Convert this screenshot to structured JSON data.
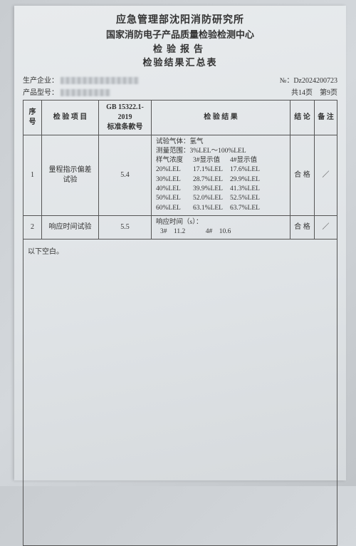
{
  "header": {
    "line1": "应急管理部沈阳消防研究所",
    "line2": "国家消防电子产品质量检验检测中心",
    "line3": "检验报告",
    "line4": "检验结果汇总表"
  },
  "meta": {
    "manufacturer_label": "生产企业：",
    "model_label": "产品型号：",
    "doc_no_label": "№：",
    "doc_no": "Dz2024200723",
    "page_info": "共14页　第9页"
  },
  "columns": {
    "idx": "序号",
    "item": "检 验 项 目",
    "std": "GB 15322.1-2019\n标准条款号",
    "result": "检 验 结 果",
    "conclusion": "结 论",
    "remark": "备 注"
  },
  "rows": [
    {
      "idx": "1",
      "item": "量程指示偏差\n试验",
      "std": "5.4",
      "result": {
        "gas_line": "试验气体：氢气",
        "range_line": "测量范围：3%LEL～100%LEL",
        "grid_header": [
          "样气浓度",
          "3#显示值",
          "4#显示值"
        ],
        "grid_rows": [
          [
            "20%LEL",
            "17.1%LEL",
            "17.6%LEL"
          ],
          [
            "30%LEL",
            "28.7%LEL",
            "29.9%LEL"
          ],
          [
            "40%LEL",
            "39.9%LEL",
            "41.3%LEL"
          ],
          [
            "50%LEL",
            "52.0%LEL",
            "52.5%LEL"
          ],
          [
            "60%LEL",
            "63.1%LEL",
            "63.7%LEL"
          ]
        ]
      },
      "conclusion": "合 格",
      "remark": "／"
    },
    {
      "idx": "2",
      "item": "响应时间试验",
      "std": "5.5",
      "result": {
        "line1": "响应时间（s）：",
        "line2": "3#　11.2　　　4#　10.6"
      },
      "conclusion": "合 格",
      "remark": "／"
    }
  ],
  "blank_below": "以下空白。",
  "style": {
    "border_color": "#555555",
    "text_color": "#333333",
    "sheet_bg": "#e2e6e9"
  }
}
